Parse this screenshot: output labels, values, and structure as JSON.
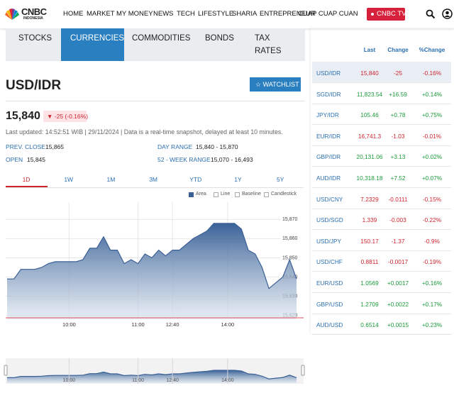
{
  "header": {
    "logo": "CNBC",
    "logo_sub": "INDONESIA",
    "nav": [
      "HOME",
      "MARKET",
      "MY MONEY",
      "NEWS",
      "TECH",
      "LIFESTYLE",
      "SHARIA",
      "ENTREPRENEUR",
      "CUAP CUAP CUAN"
    ],
    "tv_button": "CNBC TV"
  },
  "tabs": [
    "STOCKS",
    "CURRENCIES",
    "COMMODITIES",
    "BONDS",
    "TAX RATES"
  ],
  "active_tab": 1,
  "quote": {
    "symbol": "USD/IDR",
    "watchlist": "WATCHLIST",
    "price": "15,840",
    "change": "-25 (-0.16%)",
    "updated": "Last updated: 14:52:51 WIB | 29/11/2024 | Data is a real-time snapshot, delayed at least 10 minutes.",
    "stats": [
      {
        "label": "PREV. CLOSE",
        "value": "15,865"
      },
      {
        "label": "OPEN",
        "value": "15,845"
      },
      {
        "label": "DAY RANGE",
        "value": "15,840 - 15,870"
      },
      {
        "label": "52 - WEEK RANGE",
        "value": "15,070 - 16,493"
      }
    ]
  },
  "ranges": [
    "1D",
    "1W",
    "1M",
    "3M",
    "YTD",
    "1Y",
    "5Y"
  ],
  "active_range": 0,
  "chart_types": [
    "Area",
    "Line",
    "Baseline",
    "Candlestick"
  ],
  "chart_data": {
    "type": "area",
    "color": "#3b6096",
    "categories": [
      null,
      null,
      null,
      null,
      null,
      null,
      null,
      null,
      null,
      "10:00",
      null,
      null,
      null,
      null,
      null,
      null,
      null,
      null,
      null,
      "11:00",
      null,
      null,
      null,
      null,
      "12:40",
      null,
      null,
      null,
      null,
      null,
      null,
      null,
      "14:00",
      null,
      null,
      null,
      null,
      null,
      null,
      null,
      null,
      null,
      null
    ],
    "values": [
      15839,
      15839,
      15844,
      15844,
      15844,
      15845,
      15847,
      15848,
      15848,
      15848,
      15848,
      15849,
      15855,
      15855,
      15861,
      15854,
      15854,
      15847,
      15849,
      15847,
      15852,
      15850,
      15854,
      15851,
      15854,
      15854,
      15857,
      15860,
      15862,
      15864,
      15868,
      15868,
      15868,
      15868,
      15865,
      15854,
      15852,
      15845,
      15834,
      15837,
      15840,
      15849,
      15839
    ],
    "ylim": [
      15818,
      15879
    ],
    "yticks": [
      {
        "value": 15820,
        "label": "15,820"
      },
      {
        "value": 15830,
        "label": "15,830"
      },
      {
        "value": 15840,
        "label": "15,840"
      },
      {
        "value": 15850,
        "label": "15,850"
      },
      {
        "value": 15860,
        "label": "15,860"
      },
      {
        "value": 15870,
        "label": "15,870"
      }
    ],
    "grid": true
  },
  "table": {
    "columns": [
      "Last",
      "Change",
      "%Change"
    ],
    "rows": [
      [
        "USD/IDR",
        "15,840",
        "-25",
        "-0.16%"
      ],
      [
        "SGD/IDR",
        "11,823.54",
        "+16.59",
        "+0.14%"
      ],
      [
        "JPY/IDR",
        "105.46",
        "+0.78",
        "+0.75%"
      ],
      [
        "EUR/IDR",
        "16,741.3",
        "-1.03",
        "-0.01%"
      ],
      [
        "GBP/IDR",
        "20,131.06",
        "+3.13",
        "+0.02%"
      ],
      [
        "AUD/IDR",
        "10,318.18",
        "+7.52",
        "+0.07%"
      ],
      [
        "USD/CNY",
        "7.2329",
        "-0.0111",
        "-0.15%"
      ],
      [
        "USD/SGD",
        "1.339",
        "-0.003",
        "-0.22%"
      ],
      [
        "USD/JPY",
        "150.17",
        "-1.37",
        "-0.9%"
      ],
      [
        "USD/CHF",
        "0.8811",
        "-0.0017",
        "-0.19%"
      ],
      [
        "EUR/USD",
        "1.0569",
        "+0.0017",
        "+0.16%"
      ],
      [
        "GBP/USD",
        "1.2709",
        "+0.0022",
        "+0.17%"
      ],
      [
        "AUD/USD",
        "0.6514",
        "+0.0015",
        "+0.23%"
      ]
    ]
  }
}
